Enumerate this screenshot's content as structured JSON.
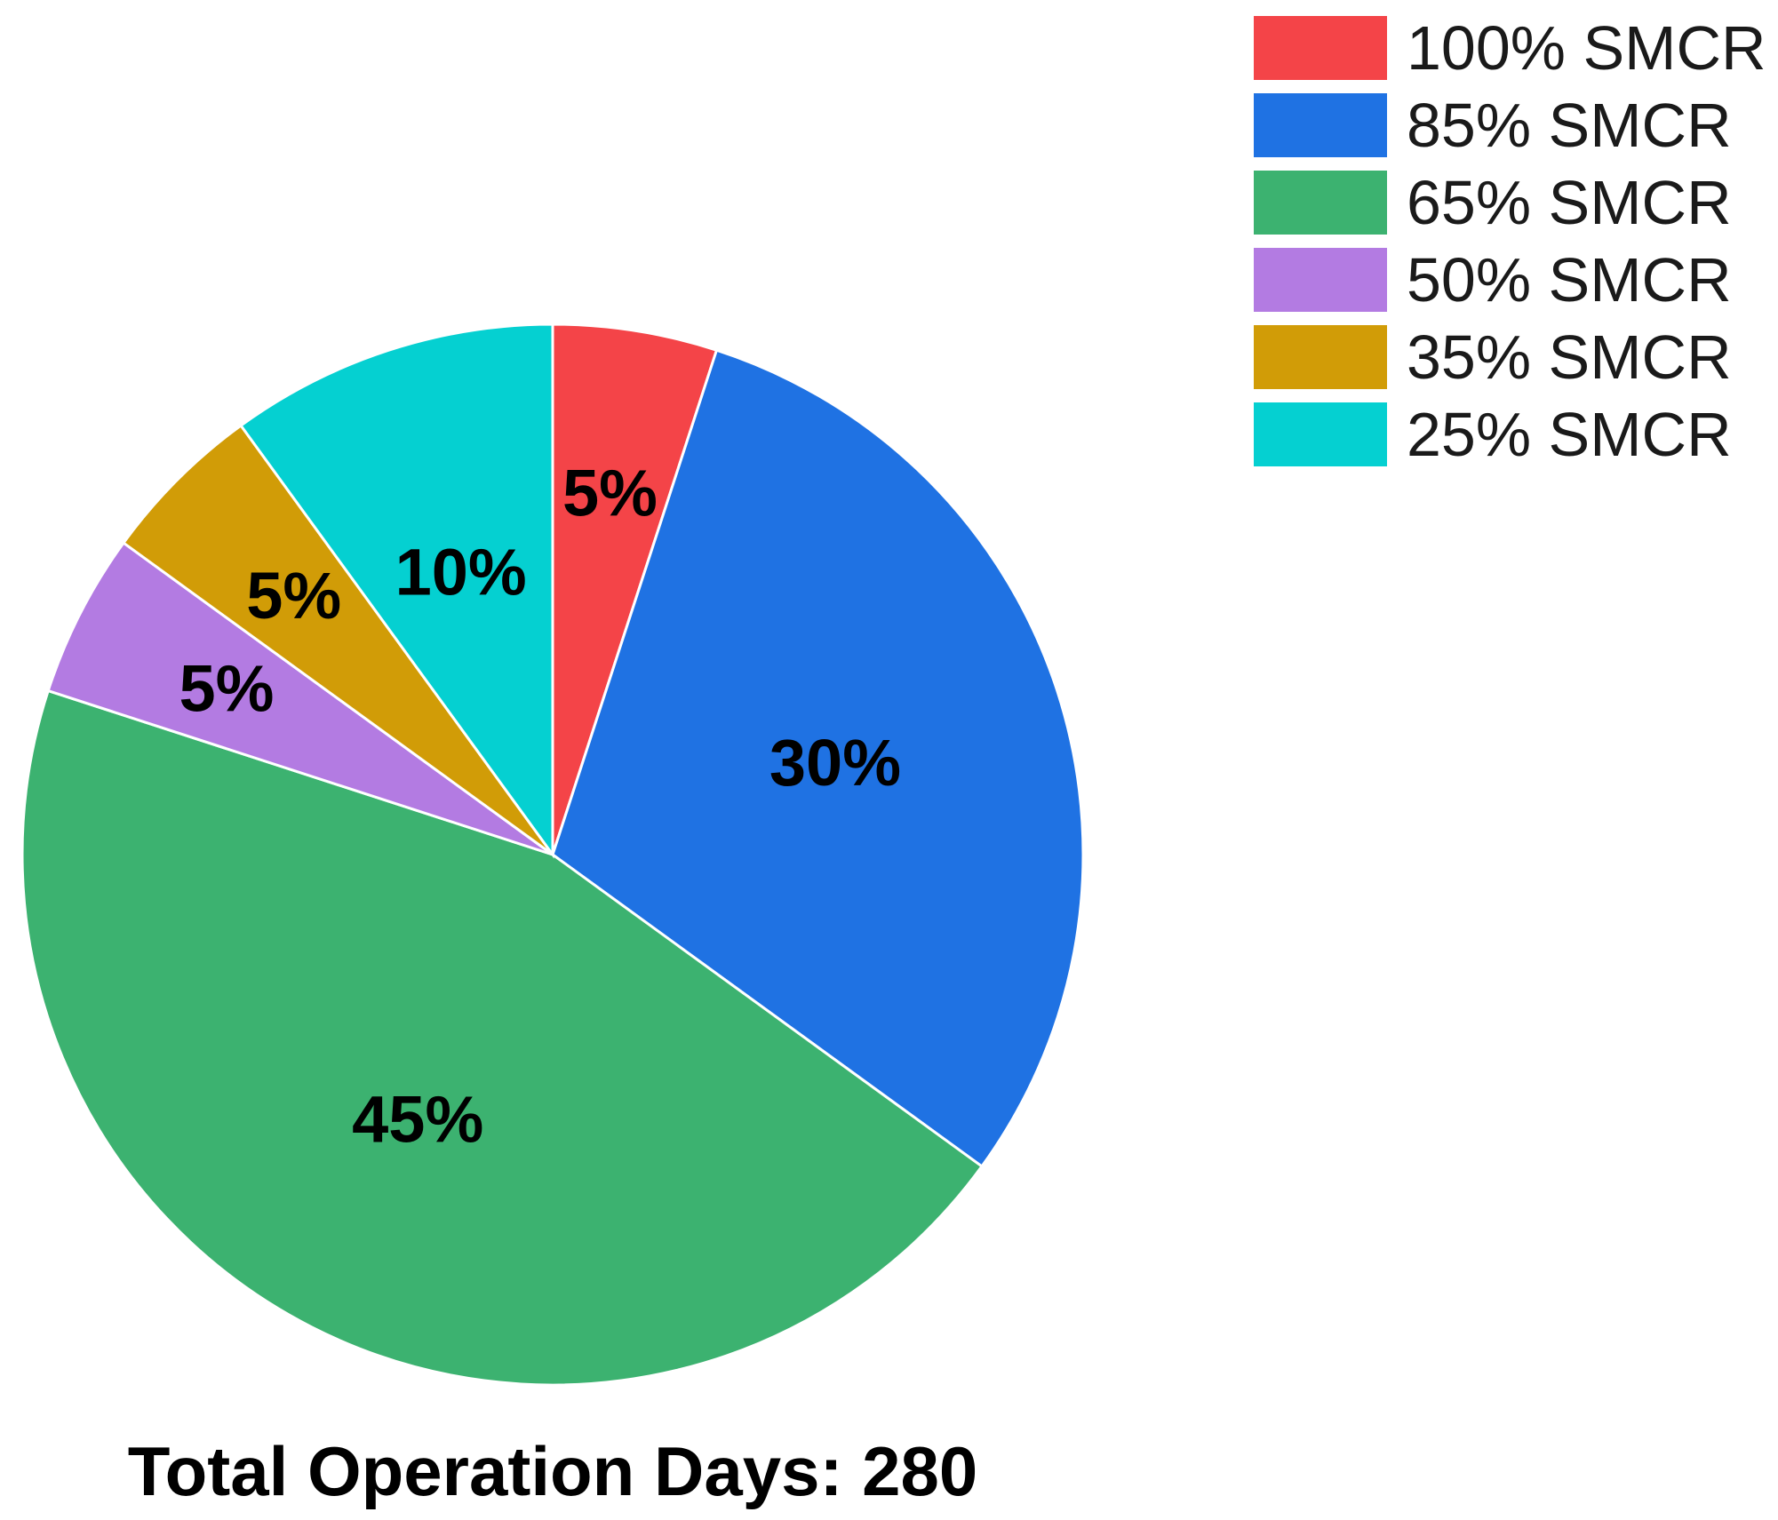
{
  "chart_data": {
    "type": "pie",
    "categories": [
      "100% SMCR",
      "85% SMCR",
      "65% SMCR",
      "50% SMCR",
      "35% SMCR",
      "25% SMCR"
    ],
    "values": [
      5,
      30,
      45,
      5,
      5,
      10
    ],
    "value_labels": [
      "5%",
      "30%",
      "45%",
      "5%",
      "5%",
      "10%"
    ],
    "colors": [
      "#f44448",
      "#1f72e3",
      "#3cb270",
      "#b37be2",
      "#d19c07",
      "#05d0d1"
    ],
    "caption": "Total Operation Days: 280",
    "legend_position": "top-right",
    "start_angle": "12 o'clock",
    "direction": "clockwise"
  }
}
